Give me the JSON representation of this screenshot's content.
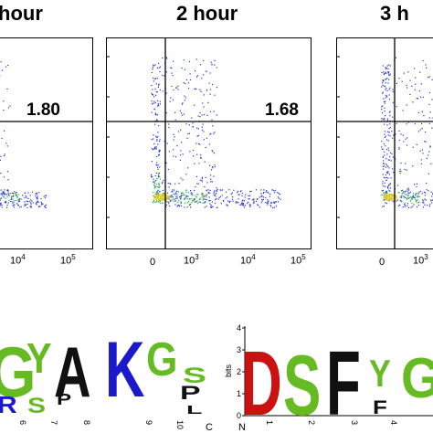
{
  "figure": {
    "panels": [
      {
        "title": "hour",
        "percent": "1.80",
        "ticks": [
          "10",
          "4",
          "10",
          "5"
        ]
      },
      {
        "title": "2 hour",
        "percent": "1.68",
        "ticks": [
          "0",
          "10",
          "3",
          "10",
          "4",
          "10",
          "5"
        ]
      },
      {
        "title": "3 h",
        "percent": "",
        "ticks": [
          "0",
          "10",
          "3"
        ]
      }
    ],
    "logo_left": {
      "letters_top": [
        "G",
        "Y",
        "A",
        "K",
        "G",
        "S",
        "P"
      ],
      "letters_bottom": [
        "R",
        "S",
        "P",
        "L"
      ],
      "positions": [
        "6",
        "7",
        "8",
        "9",
        "10"
      ],
      "c_label": "C"
    },
    "logo_right": {
      "ylabel": "bits",
      "yticks": [
        "4",
        "3",
        "2",
        "1",
        "0"
      ],
      "letters": [
        "D",
        "S",
        "F",
        "Y",
        "G",
        "F"
      ],
      "n_label": "N",
      "positions": [
        "1",
        "2",
        "3",
        "4"
      ]
    },
    "colors": {
      "dots": "#2233cc",
      "dense": "#22aa44",
      "G": "#66bb22",
      "Y": "#66bb22",
      "S": "#66bb22",
      "A": "#111111",
      "K": "#1a1acc",
      "R": "#1a1acc",
      "D": "#cc1111",
      "F": "#111111",
      "P": "#111111",
      "L": "#111111"
    }
  }
}
